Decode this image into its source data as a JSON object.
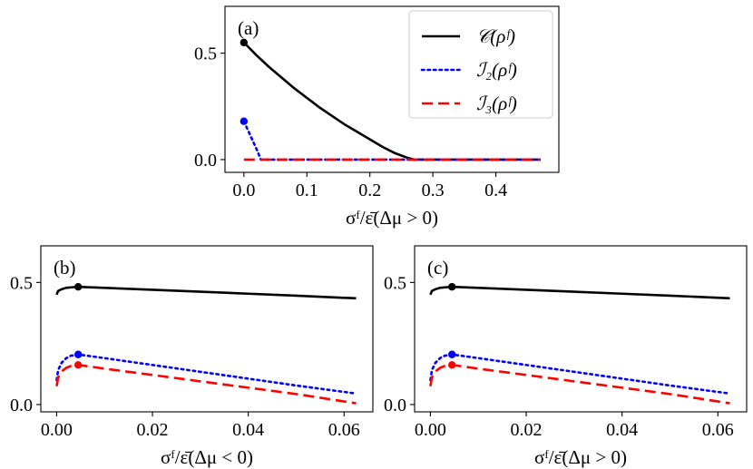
{
  "chart_data": [
    {
      "id": "a",
      "type": "line",
      "panel_label": "(a)",
      "xlabel": "σᶠ/ε̄(Δμ > 0)",
      "xlim": [
        -0.03,
        0.5
      ],
      "ylim": [
        -0.06,
        0.72
      ],
      "xticks": [
        0.0,
        0.1,
        0.2,
        0.3,
        0.4
      ],
      "xtick_labels": [
        "0.0",
        "0.1",
        "0.2",
        "0.3",
        "0.4"
      ],
      "yticks": [
        0.0,
        0.5
      ],
      "ytick_labels": [
        "0.0",
        "0.5"
      ],
      "legend_position": "top-right",
      "series": [
        {
          "name": "C(ρᶠ)",
          "legend": "𝒞(ρᶠ)",
          "color": "#000000",
          "style": "solid",
          "x": [
            0.0,
            0.02,
            0.04,
            0.06,
            0.08,
            0.1,
            0.12,
            0.14,
            0.16,
            0.18,
            0.2,
            0.22,
            0.24,
            0.26,
            0.27,
            0.3,
            0.35,
            0.4,
            0.45,
            0.47
          ],
          "y": [
            0.55,
            0.49,
            0.435,
            0.385,
            0.335,
            0.29,
            0.245,
            0.205,
            0.165,
            0.13,
            0.095,
            0.06,
            0.03,
            0.008,
            0.0,
            0.0,
            0.0,
            0.0,
            0.0,
            0.0
          ],
          "marker": {
            "x": 0.0,
            "y": 0.55
          }
        },
        {
          "name": "I2(ρᶠ)",
          "legend": "ℐ₂(ρᶠ)",
          "color": "#0000ff",
          "style": "dotted",
          "x": [
            0.0,
            0.01,
            0.02,
            0.027,
            0.1,
            0.2,
            0.3,
            0.4,
            0.47
          ],
          "y": [
            0.18,
            0.115,
            0.05,
            0.0,
            0.0,
            0.0,
            0.0,
            0.0,
            0.0
          ],
          "marker": {
            "x": 0.0,
            "y": 0.18
          }
        },
        {
          "name": "I3(ρᶠ)",
          "legend": "ℐ₃(ρᶠ)",
          "color": "#ff0000",
          "style": "dashed",
          "x": [
            0.0,
            0.1,
            0.2,
            0.3,
            0.4,
            0.47
          ],
          "y": [
            0.0,
            0.0,
            0.0,
            0.0,
            0.0,
            0.0
          ]
        }
      ]
    },
    {
      "id": "b",
      "type": "line",
      "panel_label": "(b)",
      "xlabel": "σᶠ/ε̄(Δμ < 0)",
      "xlim": [
        -0.0033,
        0.066
      ],
      "ylim": [
        -0.03,
        0.65
      ],
      "xticks": [
        0.0,
        0.02,
        0.04,
        0.06
      ],
      "xtick_labels": [
        "0.00",
        "0.02",
        "0.04",
        "0.06"
      ],
      "yticks": [
        0.0,
        0.5
      ],
      "ytick_labels": [
        "0.0",
        "0.5"
      ],
      "series": [
        {
          "name": "C(ρᶠ)",
          "color": "#000000",
          "style": "solid",
          "x": [
            0.0,
            0.0003,
            0.001,
            0.002,
            0.003,
            0.0045,
            0.01,
            0.02,
            0.03,
            0.04,
            0.05,
            0.0625
          ],
          "y": [
            0.45,
            0.465,
            0.472,
            0.478,
            0.48,
            0.482,
            0.478,
            0.47,
            0.462,
            0.454,
            0.446,
            0.435
          ],
          "marker": {
            "x": 0.0045,
            "y": 0.482
          }
        },
        {
          "name": "I2(ρᶠ)",
          "color": "#0000ff",
          "style": "dotted",
          "x": [
            0.0,
            0.0003,
            0.001,
            0.002,
            0.003,
            0.0045,
            0.01,
            0.02,
            0.03,
            0.04,
            0.05,
            0.0625
          ],
          "y": [
            0.1,
            0.14,
            0.17,
            0.19,
            0.2,
            0.205,
            0.19,
            0.162,
            0.134,
            0.106,
            0.078,
            0.045
          ],
          "marker": {
            "x": 0.0045,
            "y": 0.205
          }
        },
        {
          "name": "I3(ρᶠ)",
          "color": "#ff0000",
          "style": "dashed",
          "x": [
            0.0,
            0.0003,
            0.001,
            0.002,
            0.003,
            0.0045,
            0.01,
            0.02,
            0.03,
            0.04,
            0.05,
            0.0625
          ],
          "y": [
            0.075,
            0.11,
            0.135,
            0.15,
            0.158,
            0.162,
            0.147,
            0.121,
            0.095,
            0.069,
            0.043,
            0.005
          ],
          "marker": {
            "x": 0.0045,
            "y": 0.162
          }
        }
      ]
    },
    {
      "id": "c",
      "type": "line",
      "panel_label": "(c)",
      "xlabel": "σᶠ/ε̄(Δμ > 0)",
      "xlim": [
        -0.0033,
        0.066
      ],
      "ylim": [
        -0.03,
        0.65
      ],
      "xticks": [
        0.0,
        0.02,
        0.04,
        0.06
      ],
      "xtick_labels": [
        "0.00",
        "0.02",
        "0.04",
        "0.06"
      ],
      "yticks": [
        0.0,
        0.5
      ],
      "ytick_labels": [
        "0.0",
        "0.5"
      ],
      "series": [
        {
          "name": "C(ρᶠ)",
          "color": "#000000",
          "style": "solid",
          "x": [
            0.0,
            0.0003,
            0.001,
            0.002,
            0.003,
            0.0045,
            0.01,
            0.02,
            0.03,
            0.04,
            0.05,
            0.0625
          ],
          "y": [
            0.45,
            0.465,
            0.472,
            0.478,
            0.48,
            0.482,
            0.478,
            0.47,
            0.462,
            0.454,
            0.446,
            0.435
          ],
          "marker": {
            "x": 0.0045,
            "y": 0.482
          }
        },
        {
          "name": "I2(ρᶠ)",
          "color": "#0000ff",
          "style": "dotted",
          "x": [
            0.0,
            0.0003,
            0.001,
            0.002,
            0.003,
            0.0045,
            0.01,
            0.02,
            0.03,
            0.04,
            0.05,
            0.0625
          ],
          "y": [
            0.1,
            0.14,
            0.17,
            0.19,
            0.2,
            0.205,
            0.19,
            0.162,
            0.134,
            0.106,
            0.078,
            0.045
          ],
          "marker": {
            "x": 0.0045,
            "y": 0.205
          }
        },
        {
          "name": "I3(ρᶠ)",
          "color": "#ff0000",
          "style": "dashed",
          "x": [
            0.0,
            0.0003,
            0.001,
            0.002,
            0.003,
            0.0045,
            0.01,
            0.02,
            0.03,
            0.04,
            0.05,
            0.0625
          ],
          "y": [
            0.075,
            0.11,
            0.135,
            0.15,
            0.158,
            0.162,
            0.147,
            0.121,
            0.095,
            0.069,
            0.043,
            0.005
          ],
          "marker": {
            "x": 0.0045,
            "y": 0.162
          }
        }
      ]
    }
  ]
}
